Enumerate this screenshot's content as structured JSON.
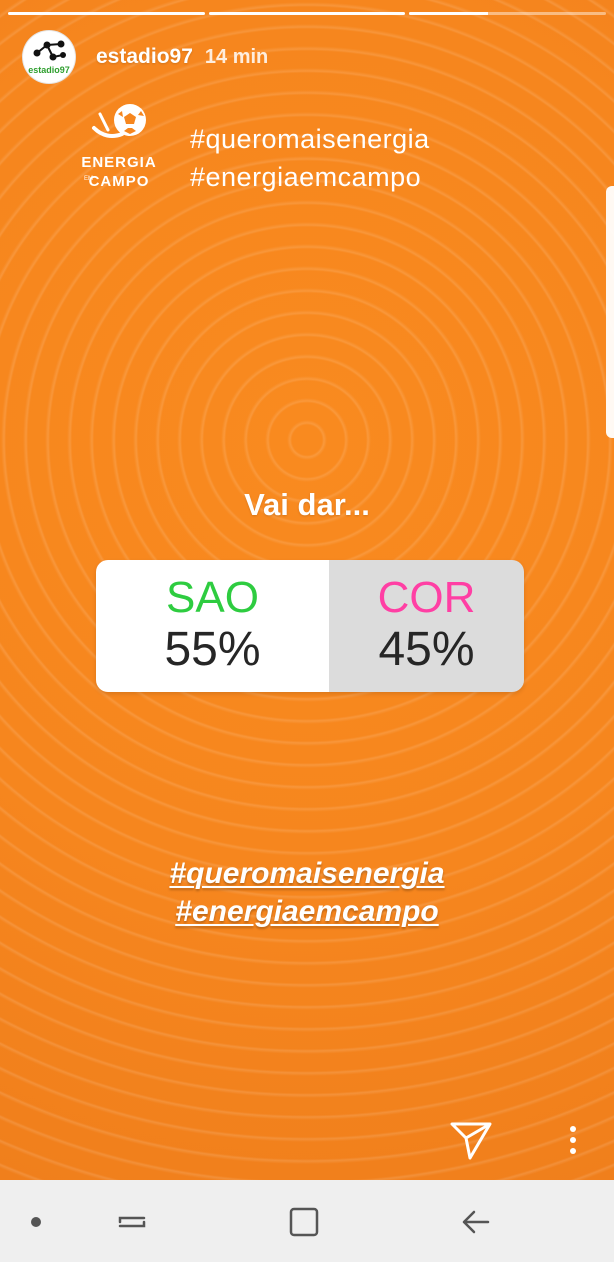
{
  "progress_fill": [
    1.0,
    1.0,
    0.4
  ],
  "header": {
    "username": "estadio97",
    "time": "14 min",
    "avatar_label": "estadio97"
  },
  "brand": {
    "line1": "ENERGIA",
    "small": "EM",
    "line2": "CAMPO"
  },
  "hashtags_top": [
    "#queromaisenergia",
    "#energiaemcampo"
  ],
  "poll": {
    "question": "Vai dar...",
    "options": [
      {
        "label": "SAO",
        "percent": "55%",
        "color": "#2ecc40"
      },
      {
        "label": "COR",
        "percent": "45%",
        "color": "#ff3fa4"
      }
    ],
    "result_fractions": [
      0.55,
      0.45
    ]
  },
  "hashtags_bottom": [
    "#queromaisenergia",
    "#energiaemcampo"
  ],
  "icons": {
    "send": "paper-plane-icon",
    "more": "vertical-ellipsis-icon",
    "nav": [
      "dot-icon",
      "recents-icon",
      "home-icon",
      "back-icon"
    ]
  },
  "colors": {
    "story_bg": "#f6861e",
    "navbar_bg": "#efefef"
  }
}
